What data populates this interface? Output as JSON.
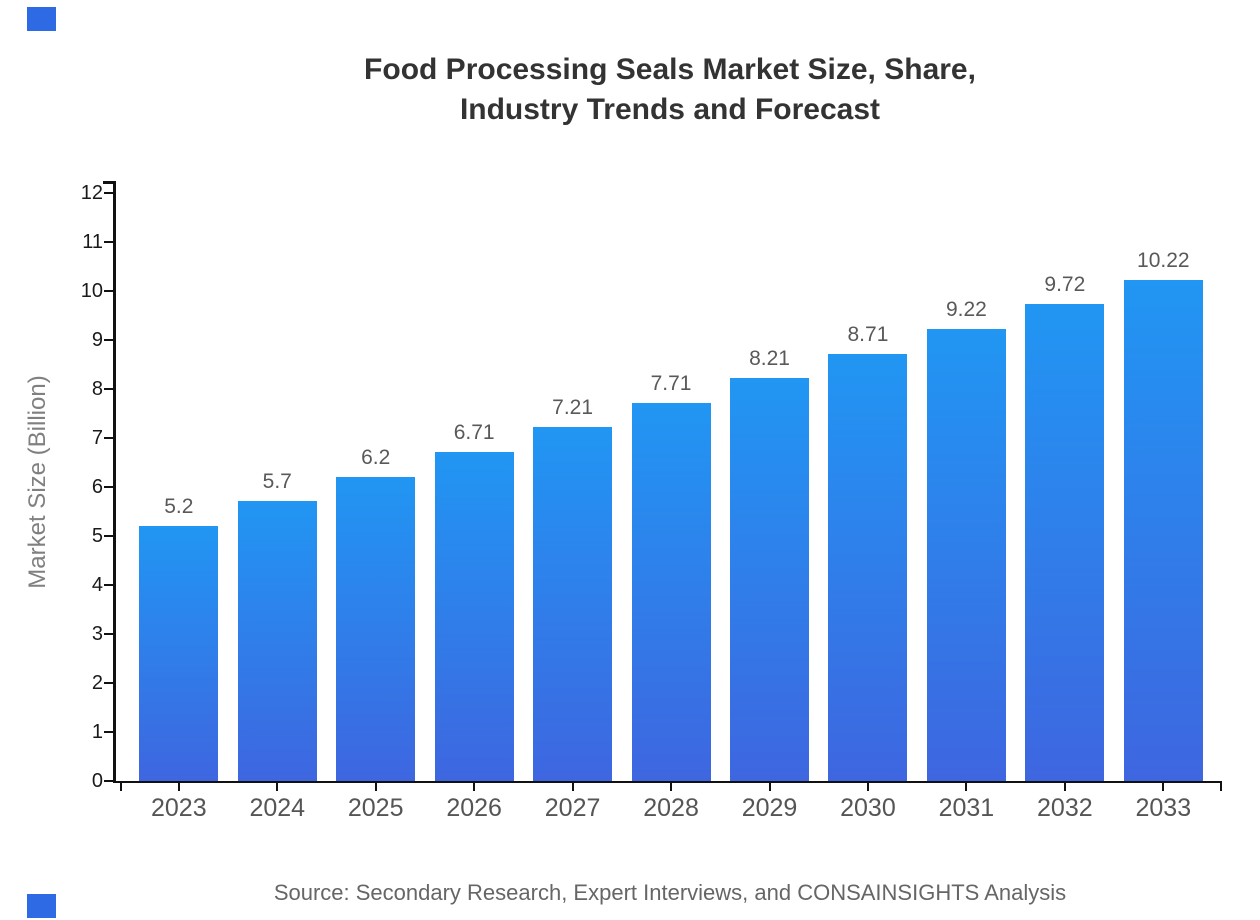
{
  "title": {
    "line1": "Food Processing Seals Market Size, Share,",
    "line2": "Industry Trends and Forecast"
  },
  "source_note": "Source: Secondary Research, Expert Interviews, and CONSAINSIGHTS Analysis",
  "chart_data": {
    "type": "bar",
    "title": "Food Processing Seals Market Size, Share, Industry Trends and Forecast",
    "categories": [
      "2023",
      "2024",
      "2025",
      "2026",
      "2027",
      "2028",
      "2029",
      "2030",
      "2031",
      "2032",
      "2033"
    ],
    "values": [
      5.2,
      5.7,
      6.2,
      6.71,
      7.21,
      7.71,
      8.21,
      8.71,
      9.22,
      9.72,
      10.22
    ],
    "value_labels": [
      "5.2",
      "5.7",
      "6.2",
      "6.71",
      "7.21",
      "7.71",
      "8.21",
      "8.71",
      "9.22",
      "9.72",
      "10.22"
    ],
    "xlabel": "",
    "ylabel": "Market Size (Billion)",
    "ylim": [
      0,
      12
    ],
    "ytick_step": 1,
    "yticks": [
      0,
      1,
      2,
      3,
      4,
      5,
      6,
      7,
      8,
      9,
      10,
      11,
      12
    ],
    "grid": false,
    "legend": "none",
    "bar_color_top": "#2196f3",
    "bar_color_bottom": "#3e66e0"
  },
  "colors": {
    "title": "#333333",
    "value_label": "#595959",
    "x_tick_label": "#555555",
    "y_tick_label": "#1a1a1a",
    "axis": "#111111",
    "y_axis_label": "#808080",
    "source": "#666666",
    "brand_square": "#2e6ae4"
  }
}
